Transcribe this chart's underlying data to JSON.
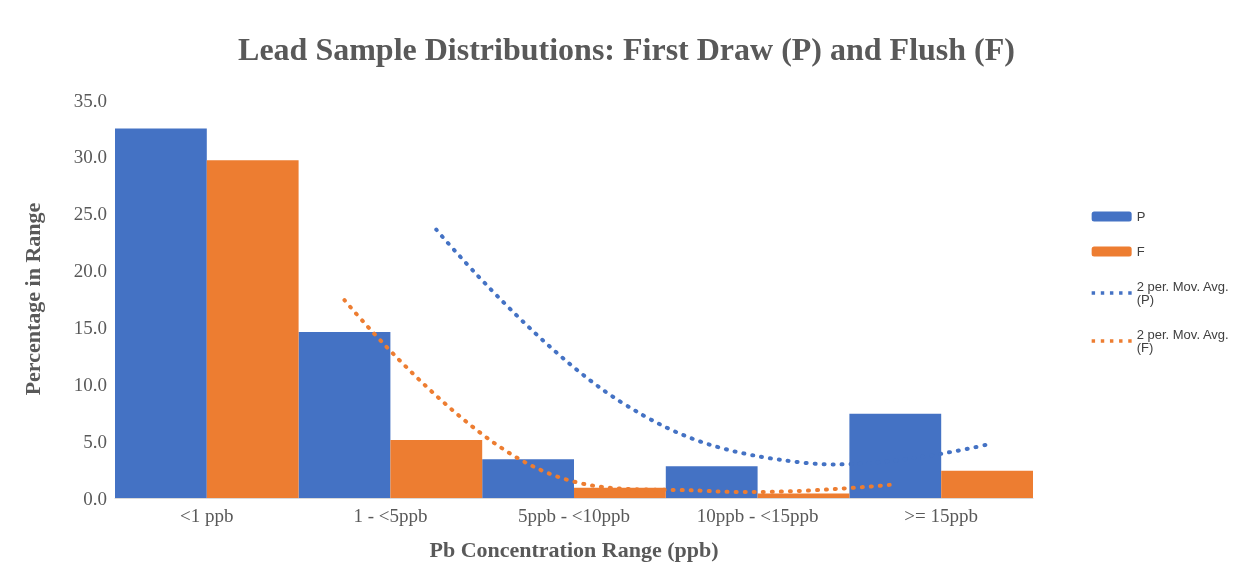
{
  "chart_data": {
    "type": "bar",
    "title": "Lead Sample Distributions: First Draw (P) and Flush (F)",
    "xlabel": "Pb Concentration Range (ppb)",
    "ylabel": "Percentage in Range",
    "categories": [
      "<1 ppb",
      "1 - <5ppb",
      "5ppb - <10ppb",
      "10ppb - <15ppb",
      ">= 15ppb"
    ],
    "series": [
      {
        "name": "P",
        "color": "#4472c4",
        "values": [
          32.5,
          14.6,
          3.4,
          2.8,
          7.4
        ]
      },
      {
        "name": "F",
        "color": "#ed7d31",
        "values": [
          29.7,
          5.1,
          0.9,
          0.4,
          2.4
        ]
      },
      {
        "name": "2 per. Mov. Avg. (P)",
        "type": "line",
        "line_style": "dotted",
        "marker": "none",
        "color": "#4472c4",
        "values": [
          null,
          23.6,
          8.5,
          3.1,
          4.7
        ]
      },
      {
        "name": "2 per. Mov. Avg. (F)",
        "type": "line",
        "line_style": "dotted",
        "marker": "none",
        "color": "#ed7d31",
        "values": [
          null,
          17.4,
          3.0,
          0.6,
          1.2
        ]
      }
    ],
    "ylim": [
      0,
      35
    ],
    "yticks": [
      {
        "value": 0,
        "label": "0.0"
      },
      {
        "value": 5,
        "label": "5.0"
      },
      {
        "value": 10,
        "label": "10.0"
      },
      {
        "value": 15,
        "label": "15.0"
      },
      {
        "value": 20,
        "label": "20.0"
      },
      {
        "value": 25,
        "label": "25.0"
      },
      {
        "value": 30,
        "label": "30.0"
      },
      {
        "value": 35,
        "label": "35.0"
      }
    ],
    "grid": false,
    "legend": "right"
  }
}
